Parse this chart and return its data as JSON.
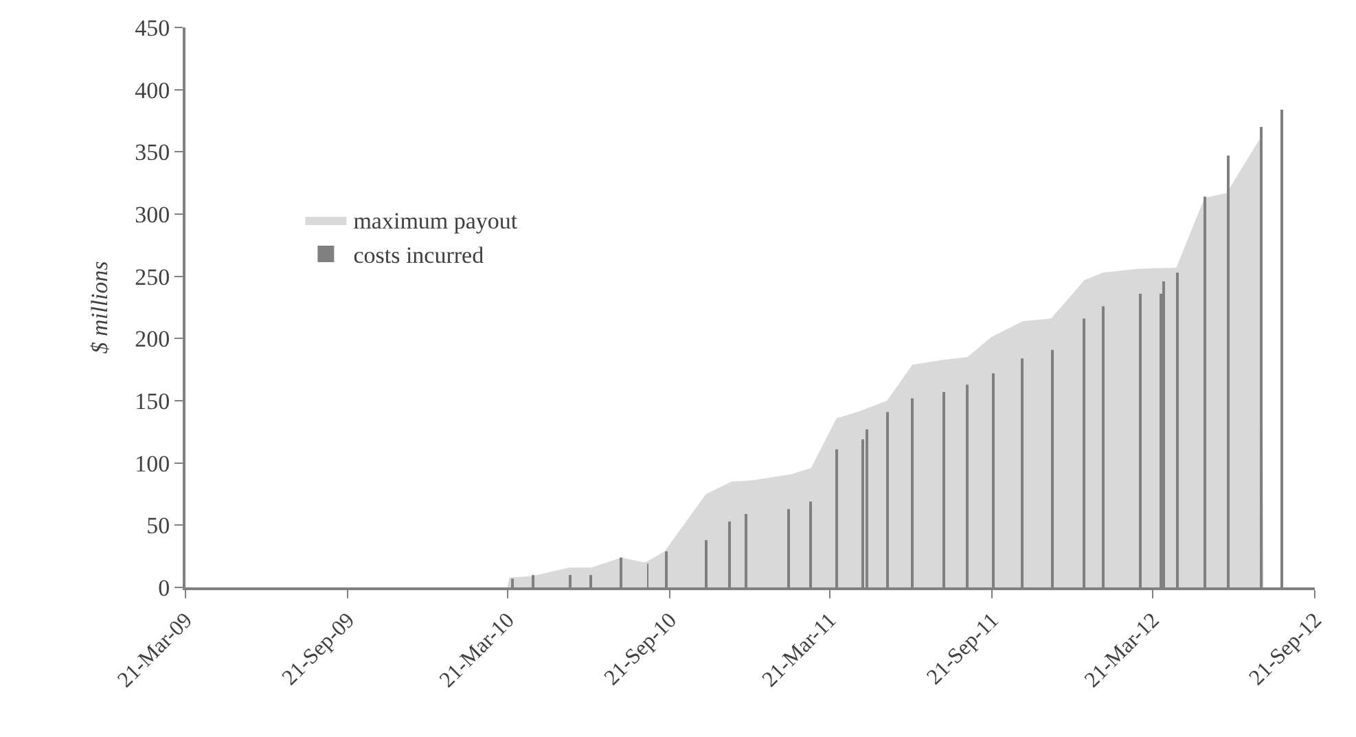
{
  "chart_data": {
    "type": "area",
    "ylabel": "$ millions",
    "xlim": [
      "2009-03-21",
      "2012-09-21"
    ],
    "xticks": [
      {
        "value": "2009-03-21",
        "label": "21-Mar-09"
      },
      {
        "value": "2009-09-21",
        "label": "21-Sep-09"
      },
      {
        "value": "2010-03-21",
        "label": "21-Mar-10"
      },
      {
        "value": "2010-09-21",
        "label": "21-Sep-10"
      },
      {
        "value": "2011-03-21",
        "label": "21-Mar-11"
      },
      {
        "value": "2011-09-21",
        "label": "21-Sep-11"
      },
      {
        "value": "2012-03-21",
        "label": "21-Mar-12"
      },
      {
        "value": "2012-09-21",
        "label": "21-Sep-12"
      }
    ],
    "ylim": [
      0,
      450
    ],
    "yticks": [
      0,
      50,
      100,
      150,
      200,
      250,
      300,
      350,
      400,
      450
    ],
    "legend": "top left",
    "series": [
      {
        "name": "maximum payout",
        "color": "#d9d9d9",
        "x": [
          "2010-03-21",
          "2010-03-23",
          "2010-04-17",
          "2010-05-30",
          "2010-06-24",
          "2010-07-28",
          "2010-08-24",
          "2010-09-15",
          "2010-11-01",
          "2010-11-30",
          "2010-12-23",
          "2011-02-06",
          "2011-02-28",
          "2011-03-29",
          "2011-04-22",
          "2011-05-25",
          "2011-06-23",
          "2011-07-28",
          "2011-08-24",
          "2011-09-20",
          "2011-10-26",
          "2011-11-27",
          "2012-01-04",
          "2012-01-25",
          "2012-03-04",
          "2012-04-17",
          "2012-05-19",
          "2012-06-13",
          "2012-07-22",
          "2012-07-25"
        ],
        "values": [
          0,
          8,
          9,
          16,
          16,
          24,
          20,
          29,
          75,
          85,
          86,
          91,
          96,
          136,
          141,
          150,
          179,
          183,
          185,
          201,
          214,
          216,
          247,
          253,
          256,
          257,
          313,
          317,
          362,
          0
        ]
      },
      {
        "name": "costs incurred",
        "type": "bar",
        "color": "#808080",
        "x": [
          "2010-03-26",
          "2010-04-19",
          "2010-05-31",
          "2010-06-24",
          "2010-07-28",
          "2010-08-27",
          "2010-09-17",
          "2010-11-01",
          "2010-11-28",
          "2010-12-16",
          "2011-02-03",
          "2011-02-28",
          "2011-03-29",
          "2011-04-27",
          "2011-05-03",
          "2011-05-25",
          "2011-06-23",
          "2011-07-28",
          "2011-08-24",
          "2011-09-22",
          "2011-10-26",
          "2011-11-29",
          "2012-01-04",
          "2012-01-25",
          "2012-03-07",
          "2012-03-30",
          "2012-04-02",
          "2012-04-19",
          "2012-05-19",
          "2012-06-15",
          "2012-07-22",
          "2012-08-15"
        ],
        "values": [
          7,
          10,
          10,
          10,
          24,
          19,
          29,
          38,
          53,
          59,
          63,
          69,
          111,
          119,
          127,
          141,
          152,
          157,
          163,
          172,
          184,
          191,
          216,
          226,
          236,
          236,
          246,
          253,
          314,
          347,
          370,
          384
        ]
      }
    ]
  }
}
